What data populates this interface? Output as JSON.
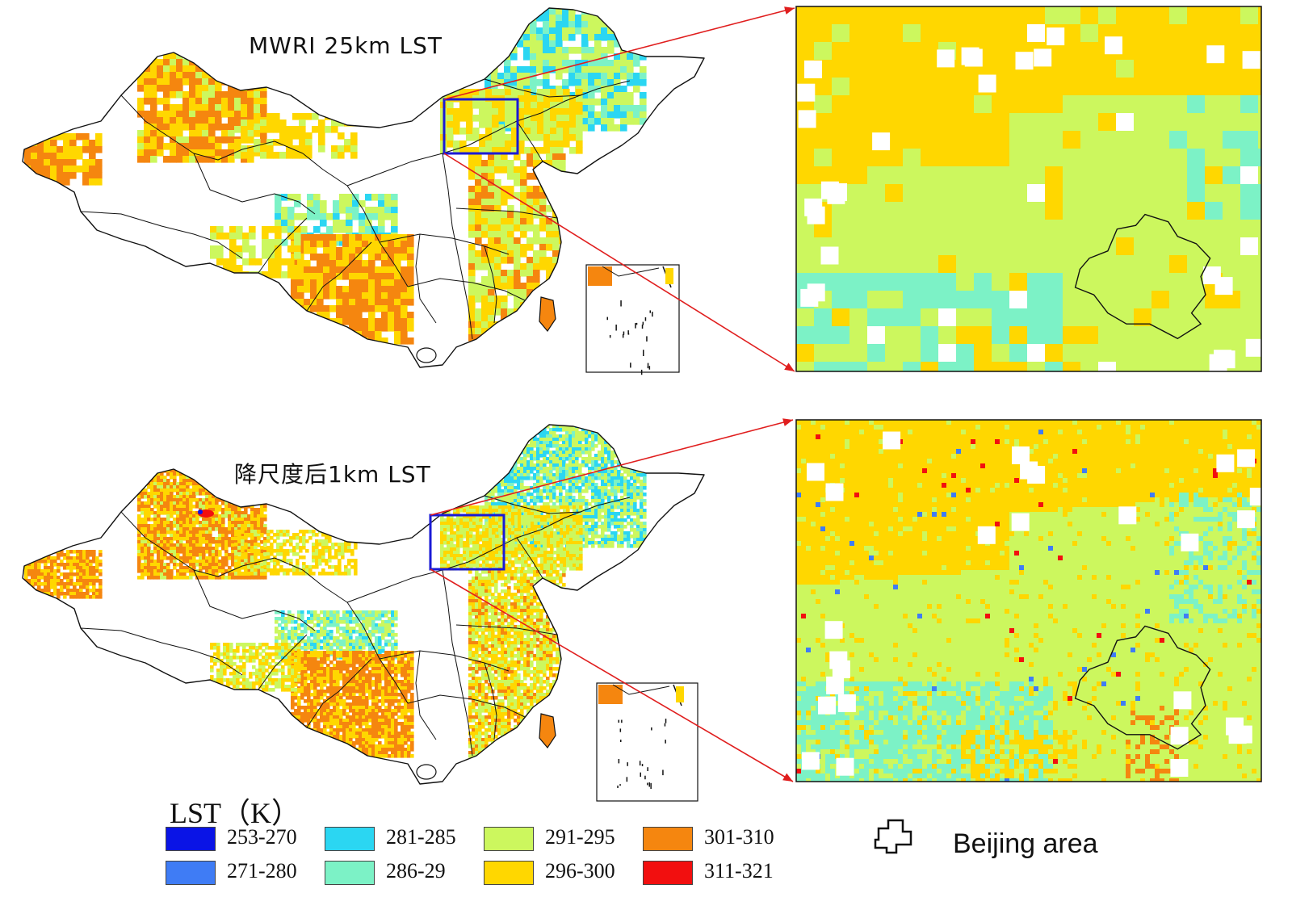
{
  "panels": [
    {
      "title": "MWRI  25km LST"
    },
    {
      "title": "降尺度后1km LST"
    }
  ],
  "legend": {
    "title": "LST（K）",
    "items": [
      {
        "label": "253-270",
        "color": "#0a14e6"
      },
      {
        "label": "281-285",
        "color": "#2bd6f2"
      },
      {
        "label": "291-295",
        "color": "#ccf75e"
      },
      {
        "label": "301-310",
        "color": "#f5860f"
      },
      {
        "label": "271-280",
        "color": "#3f7cf5"
      },
      {
        "label": "286-29",
        "color": "#7cf2c6"
      },
      {
        "label": "296-300",
        "color": "#ffd700"
      },
      {
        "label": "311-321",
        "color": "#f20f0f"
      }
    ]
  },
  "beijing_legend": {
    "label": "Beijing area"
  },
  "colors": {
    "box": "#1a1ad6",
    "zoom_lines": "#e01e1e",
    "outline": "#111111"
  }
}
